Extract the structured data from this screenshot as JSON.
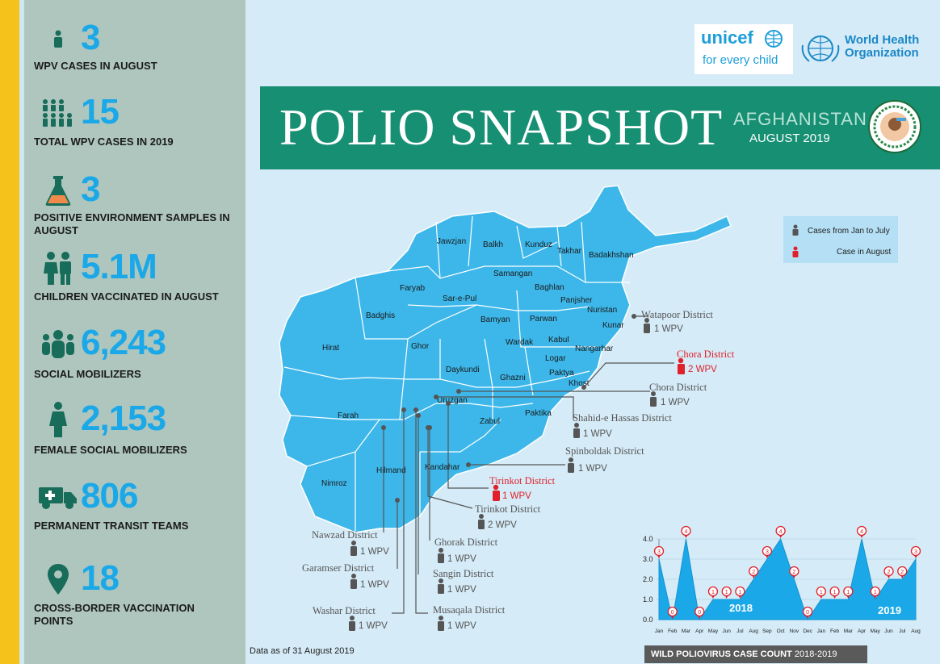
{
  "sidebar": {
    "stats": [
      {
        "value": "3",
        "label": "WPV CASES IN AUGUST",
        "icon": "person-icon"
      },
      {
        "value": "15",
        "label": "TOTAL WPV CASES IN 2019",
        "icon": "group-icon"
      },
      {
        "value": "3",
        "label": "POSITIVE ENVIRONMENT SAMPLES IN AUGUST",
        "icon": "flask-icon"
      },
      {
        "value": "5.1M",
        "label": "CHILDREN VACCINATED IN AUGUST",
        "icon": "children-icon"
      },
      {
        "value": "6,243",
        "label": "SOCIAL MOBILIZERS",
        "icon": "crowd-icon"
      },
      {
        "value": "2,153",
        "label": "FEMALE SOCIAL MOBILIZERS",
        "icon": "female-icon"
      },
      {
        "value": "806",
        "label": "PERMANENT TRANSIT TEAMS",
        "icon": "truck-icon"
      },
      {
        "value": "18",
        "label": "CROSS-BORDER VACCINATION POINTS",
        "icon": "map-pin-icon"
      }
    ]
  },
  "logos": {
    "unicef": "unicef",
    "unicef_tagline": "for every child",
    "who_line1": "World Health",
    "who_line2": "Organization"
  },
  "banner": {
    "title": "POLIO SNAPSHOT",
    "country": "AFGHANISTAN",
    "month": "AUGUST 2019"
  },
  "legend": {
    "jan_july": "Cases from Jan to July",
    "august": "Case in August"
  },
  "colors": {
    "accent": "#1aa8e8",
    "banner": "#178f73",
    "map_fill": "#3db7ea",
    "august_case": "#e0202a",
    "prior_case": "#555555"
  },
  "provinces": [
    "Jawzjan",
    "Balkh",
    "Kunduz",
    "Takhar",
    "Badakhshan",
    "Samangan",
    "Baghlan",
    "Faryab",
    "Sar-e-Pul",
    "Panjsher",
    "Nuristan",
    "Badghis",
    "Bamyan",
    "Parwan",
    "Kunar",
    "Kabul",
    "Wardak",
    "Hirat",
    "Ghor",
    "Nangarhar",
    "Logar",
    "Daykundi",
    "Paktya",
    "Ghazni",
    "Khost",
    "Uruzgan",
    "Farah",
    "Zabul",
    "Paktika",
    "Kandahar",
    "Hilmand",
    "Nimroz"
  ],
  "districts": [
    {
      "name": "Watapoor District",
      "cases": "1 WPV",
      "august": false
    },
    {
      "name": "Chora District",
      "cases": "2 WPV",
      "august": true
    },
    {
      "name": "Chora District",
      "cases": "1 WPV",
      "august": false
    },
    {
      "name": "Shahid-e Hassas District",
      "cases": "1 WPV",
      "august": false
    },
    {
      "name": "Spinboldak District",
      "cases": "1 WPV",
      "august": false
    },
    {
      "name": "Tirinkot District",
      "cases": "1 WPV",
      "august": true
    },
    {
      "name": "Tirinkot District",
      "cases": "2 WPV",
      "august": false
    },
    {
      "name": "Nawzad District",
      "cases": "1 WPV",
      "august": false
    },
    {
      "name": "Ghorak District",
      "cases": "1 WPV",
      "august": false
    },
    {
      "name": "Garamser District",
      "cases": "1 WPV",
      "august": false
    },
    {
      "name": "Sangin District",
      "cases": "1 WPV",
      "august": false
    },
    {
      "name": "Washar District",
      "cases": "1 WPV",
      "august": false
    },
    {
      "name": "Musaqala District",
      "cases": "1 WPV",
      "august": false
    }
  ],
  "chart_data": {
    "type": "area",
    "categories": [
      "Jan",
      "Feb",
      "Mar",
      "Apr",
      "May",
      "Jun",
      "Jul",
      "Aug",
      "Sep",
      "Oct",
      "Nov",
      "Dec",
      "Jan",
      "Feb",
      "Mar",
      "Apr",
      "May",
      "Jun",
      "Jul",
      "Aug"
    ],
    "values": [
      3,
      0,
      4,
      0,
      1,
      1,
      1,
      2,
      3,
      4,
      2,
      0,
      1,
      1,
      1,
      4,
      1,
      2,
      2,
      3
    ],
    "year_labels": [
      "2018",
      "2019"
    ],
    "y_ticks": [
      "4.0",
      "3.0",
      "2.0",
      "1.0",
      "0.0"
    ],
    "ylim": [
      0,
      4
    ]
  },
  "footer": {
    "note": "Data as of 31 August 2019",
    "chart_title": "WILD POLIOVIRUS CASE COUNT",
    "chart_years": "2018-2019"
  }
}
